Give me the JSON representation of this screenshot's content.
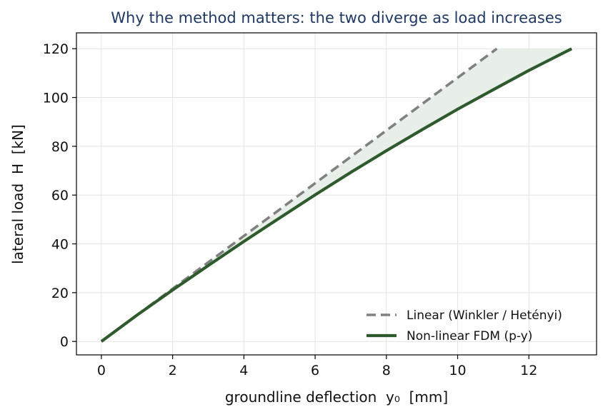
{
  "chart_data": {
    "type": "line",
    "title": "Why the method matters: the two diverge as load increases",
    "xlabel": "groundline deflection  y₀  [mm]",
    "ylabel": "lateral load  H  [kN]",
    "xlim": [
      -0.7,
      13.9
    ],
    "ylim": [
      -5.5,
      126.5
    ],
    "xticks": [
      0,
      2,
      4,
      6,
      8,
      10,
      12
    ],
    "yticks": [
      0,
      20,
      40,
      60,
      80,
      100,
      120
    ],
    "xtick_labels": [
      "0",
      "2",
      "4",
      "6",
      "8",
      "10",
      "12"
    ],
    "ytick_labels": [
      "0",
      "20",
      "40",
      "60",
      "80",
      "100",
      "120"
    ],
    "grid": true,
    "legend_position": "bottom-right",
    "shaded_region": "between series",
    "series": [
      {
        "name": "Linear (Winkler / Hetényi)",
        "style": "dashed",
        "color": "#808080",
        "x": [
          0,
          11.1
        ],
        "y": [
          0,
          120
        ]
      },
      {
        "name": "Non-linear FDM (p-y)",
        "style": "solid",
        "color": "#2f5a2e",
        "x": [
          0,
          1.0,
          2.0,
          3.0,
          4.0,
          5.0,
          6.0,
          7.0,
          8.0,
          9.0,
          10.0,
          11.0,
          12.0,
          13.2
        ],
        "y": [
          0,
          10.8,
          21.1,
          31.1,
          41.0,
          50.6,
          60.1,
          69.3,
          78.2,
          86.8,
          95.2,
          103.2,
          111.1,
          120.0
        ]
      }
    ]
  },
  "colors": {
    "title": "#1f3864",
    "shade": "#e8eee8",
    "grid": "#e3e3e3",
    "axes": "#000000"
  }
}
